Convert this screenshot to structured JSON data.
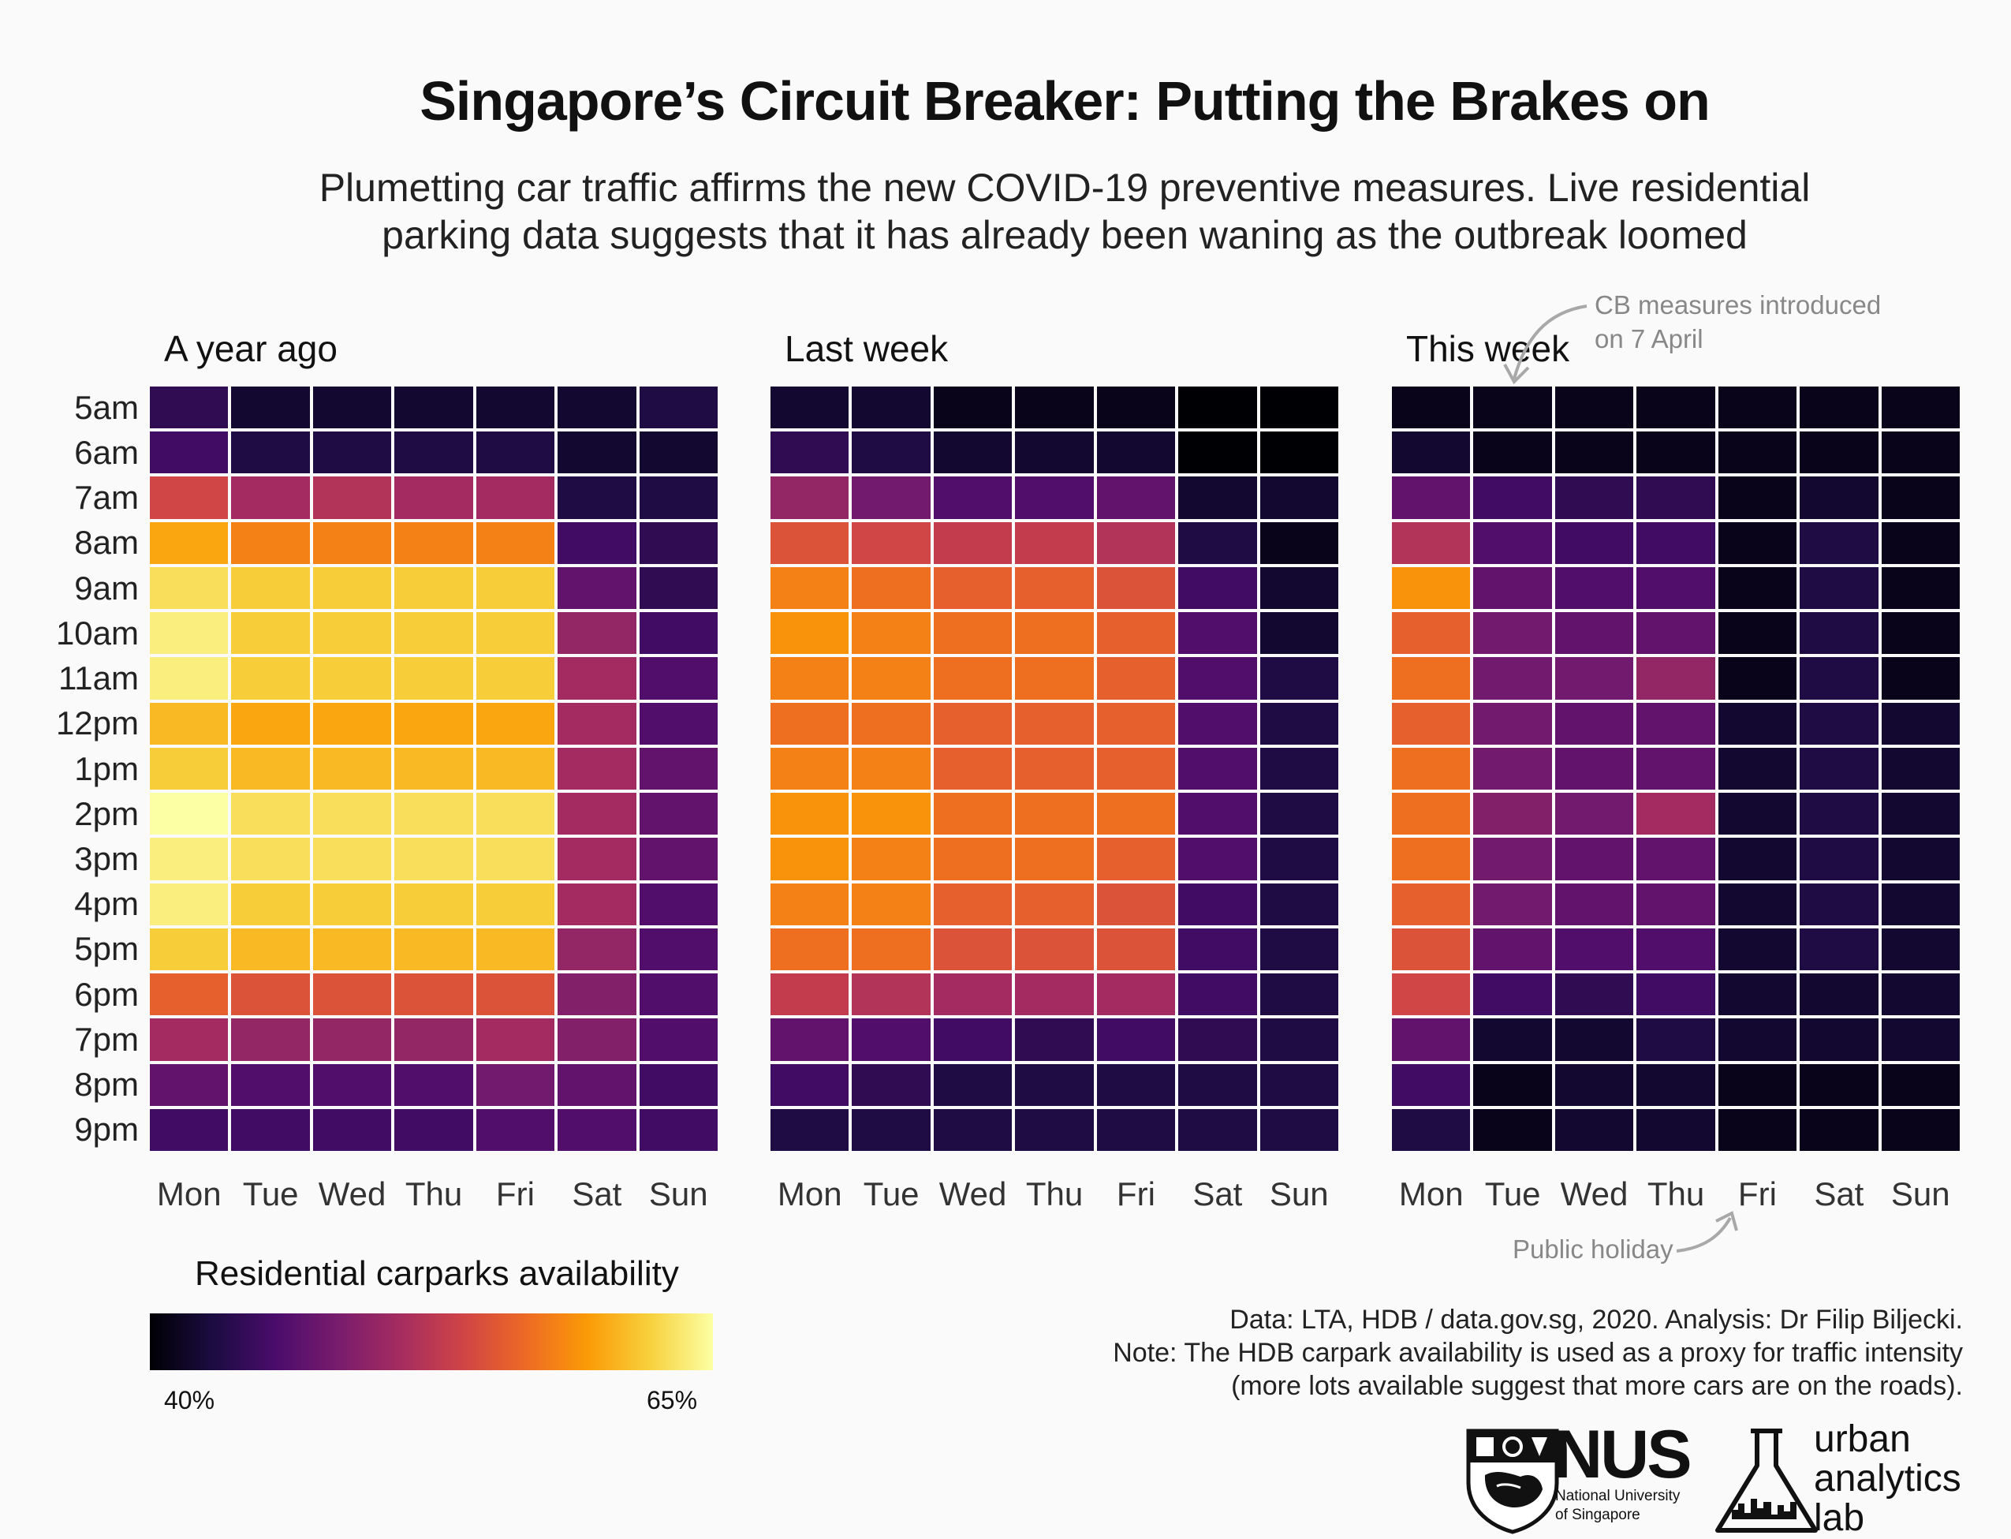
{
  "title": "Singapore’s Circuit Breaker: Putting the Brakes on",
  "subtitle_line1": "Plumetting car traffic affirms the new COVID-19 preventive measures. Live residential",
  "subtitle_line2": "parking data suggests that it has already been waning as the outbreak loomed",
  "chart_data": {
    "type": "heatmap",
    "days": [
      "Mon",
      "Tue",
      "Wed",
      "Thu",
      "Fri",
      "Sat",
      "Sun"
    ],
    "hours": [
      "5am",
      "6am",
      "7am",
      "8am",
      "9am",
      "10am",
      "11am",
      "12pm",
      "1pm",
      "2pm",
      "3pm",
      "4pm",
      "5pm",
      "6pm",
      "7pm",
      "8pm",
      "9pm"
    ],
    "value_range": [
      40,
      65
    ],
    "colormap": "inferno",
    "panels": [
      {
        "title": "A year ago",
        "values": [
          [
            44,
            42,
            42,
            42,
            42,
            42,
            43
          ],
          [
            45,
            43,
            43,
            43,
            43,
            42,
            42
          ],
          [
            54,
            51,
            52,
            51,
            51,
            43,
            43
          ],
          [
            60,
            58,
            58,
            58,
            58,
            45,
            44
          ],
          [
            63,
            62,
            62,
            62,
            62,
            47,
            44
          ],
          [
            64,
            62,
            62,
            62,
            62,
            50,
            45
          ],
          [
            64,
            62,
            62,
            62,
            62,
            51,
            46
          ],
          [
            61,
            60,
            60,
            60,
            60,
            51,
            46
          ],
          [
            62,
            61,
            61,
            61,
            61,
            51,
            47
          ],
          [
            65,
            63,
            63,
            63,
            63,
            51,
            47
          ],
          [
            64,
            63,
            63,
            63,
            63,
            51,
            47
          ],
          [
            64,
            62,
            62,
            62,
            62,
            51,
            46
          ],
          [
            62,
            61,
            61,
            61,
            61,
            50,
            46
          ],
          [
            56,
            55,
            55,
            55,
            55,
            49,
            46
          ],
          [
            51,
            50,
            50,
            50,
            51,
            49,
            46
          ],
          [
            47,
            46,
            46,
            46,
            48,
            47,
            45
          ],
          [
            45,
            45,
            45,
            45,
            46,
            46,
            45
          ]
        ]
      },
      {
        "title": "Last week",
        "values": [
          [
            42,
            42,
            41,
            41,
            41,
            40,
            40
          ],
          [
            44,
            43,
            42,
            42,
            42,
            40,
            40
          ],
          [
            50,
            48,
            46,
            46,
            47,
            42,
            42
          ],
          [
            55,
            54,
            53,
            53,
            52,
            43,
            41
          ],
          [
            58,
            57,
            56,
            56,
            55,
            45,
            42
          ],
          [
            59,
            58,
            57,
            57,
            56,
            46,
            42
          ],
          [
            58,
            58,
            57,
            57,
            56,
            46,
            43
          ],
          [
            57,
            57,
            56,
            56,
            56,
            46,
            43
          ],
          [
            58,
            58,
            56,
            56,
            56,
            46,
            43
          ],
          [
            59,
            59,
            57,
            57,
            57,
            46,
            43
          ],
          [
            59,
            58,
            57,
            57,
            56,
            46,
            43
          ],
          [
            58,
            58,
            56,
            56,
            55,
            45,
            43
          ],
          [
            57,
            57,
            55,
            55,
            55,
            45,
            43
          ],
          [
            53,
            52,
            51,
            51,
            51,
            45,
            43
          ],
          [
            47,
            46,
            45,
            44,
            45,
            44,
            43
          ],
          [
            45,
            44,
            43,
            43,
            43,
            43,
            43
          ],
          [
            43,
            43,
            43,
            43,
            43,
            43,
            43
          ]
        ]
      },
      {
        "title": "This week",
        "values": [
          [
            41,
            41,
            41,
            41,
            41,
            41,
            41
          ],
          [
            42,
            41,
            41,
            41,
            41,
            41,
            41
          ],
          [
            47,
            45,
            44,
            44,
            41,
            42,
            41
          ],
          [
            52,
            46,
            45,
            45,
            41,
            43,
            41
          ],
          [
            59,
            47,
            46,
            46,
            41,
            43,
            41
          ],
          [
            56,
            48,
            47,
            47,
            41,
            43,
            41
          ],
          [
            57,
            48,
            48,
            50,
            41,
            43,
            41
          ],
          [
            56,
            48,
            47,
            47,
            42,
            43,
            42
          ],
          [
            57,
            48,
            47,
            47,
            42,
            43,
            42
          ],
          [
            57,
            49,
            48,
            51,
            42,
            43,
            42
          ],
          [
            57,
            48,
            47,
            47,
            42,
            43,
            42
          ],
          [
            56,
            48,
            47,
            47,
            42,
            43,
            42
          ],
          [
            55,
            47,
            46,
            46,
            42,
            43,
            42
          ],
          [
            54,
            45,
            44,
            45,
            42,
            42,
            42
          ],
          [
            47,
            42,
            42,
            43,
            42,
            42,
            42
          ],
          [
            45,
            41,
            42,
            42,
            41,
            41,
            41
          ],
          [
            43,
            41,
            42,
            42,
            41,
            41,
            41
          ]
        ]
      }
    ]
  },
  "annotations": {
    "cb_line1": "CB measures introduced",
    "cb_line2": "on 7 April",
    "holiday": "Public holiday"
  },
  "legend": {
    "title": "Residential carparks availability",
    "min_label": "40%",
    "max_label": "65%"
  },
  "credits": {
    "line1": "Data: LTA, HDB / data.gov.sg, 2020. Analysis: Dr Filip Biljecki.",
    "line2": "Note: The HDB carpark availability is used as a proxy for traffic intensity",
    "line3": "(more lots available suggest that more cars are on the roads)."
  },
  "logos": {
    "nus_name": "NUS",
    "nus_line1": "National University",
    "nus_line2": "of Singapore",
    "ual_line1": "urban",
    "ual_line2": "analytics",
    "ual_line3": "lab"
  }
}
